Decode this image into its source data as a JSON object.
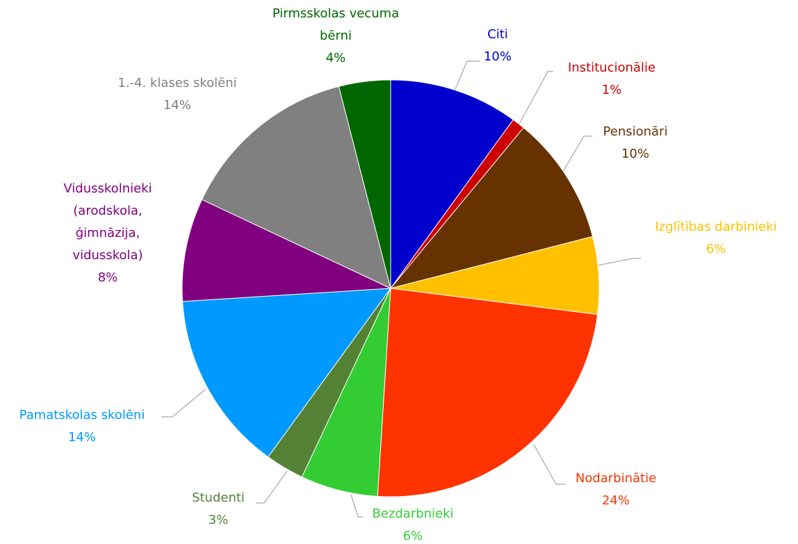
{
  "chart_data": {
    "type": "pie",
    "categories": [
      "Citi",
      "Institucionālie",
      "Pensionāri",
      "Izglītības darbinieki",
      "Nodarbinātie",
      "Bezdarbnieki",
      "Studenti",
      "Pamatskolas skolēni",
      "Vidusskolnieki (arodskola, ģimnāzija, vidusskola)",
      "1.-4. klases skolēni",
      "Pirmsskolas vecuma bērni"
    ],
    "values": [
      10,
      1,
      10,
      6,
      24,
      6,
      3,
      14,
      8,
      14,
      4
    ],
    "value_labels": [
      "10%",
      "1%",
      "10%",
      "6%",
      "24%",
      "6%",
      "3%",
      "14%",
      "8%",
      "14%",
      "4%"
    ],
    "colors": [
      "#0000cc",
      "#cc0000",
      "#663300",
      "#ffc000",
      "#ff3300",
      "#33cc33",
      "#548235",
      "#0099ff",
      "#800080",
      "#808080",
      "#006600"
    ]
  }
}
